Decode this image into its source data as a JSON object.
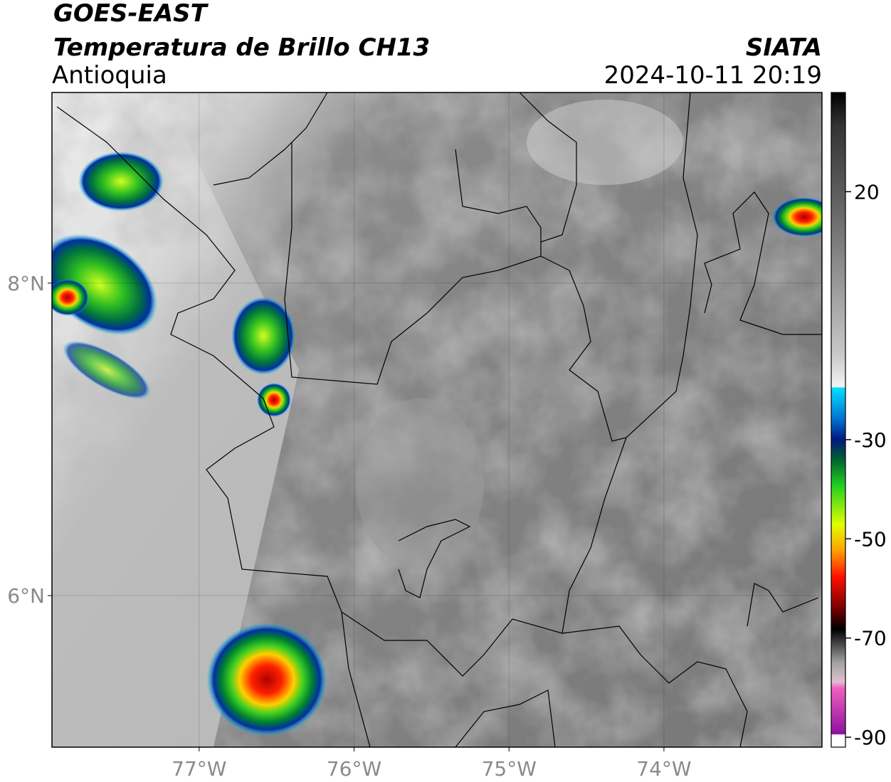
{
  "map": {
    "title": "GOES-EAST",
    "subtitle": "Temperatura de Brillo CH13",
    "region": "Antioquia",
    "source": "SIATA",
    "datetime": "2024-10-11 20:19",
    "xlim": [
      -77.95,
      -72.98
    ],
    "ylim": [
      5.03,
      9.22
    ],
    "xticks": [
      {
        "value": -77,
        "label": "77°W"
      },
      {
        "value": -76,
        "label": "76°W"
      },
      {
        "value": -75,
        "label": "75°W"
      },
      {
        "value": -74,
        "label": "74°W"
      }
    ],
    "yticks": [
      {
        "value": 8,
        "label": "8°N"
      },
      {
        "value": 6,
        "label": "6°N"
      }
    ],
    "colorbar": {
      "lim": [
        -92,
        40
      ],
      "ticks": [
        20,
        -30,
        -50,
        -70,
        -90
      ]
    }
  }
}
